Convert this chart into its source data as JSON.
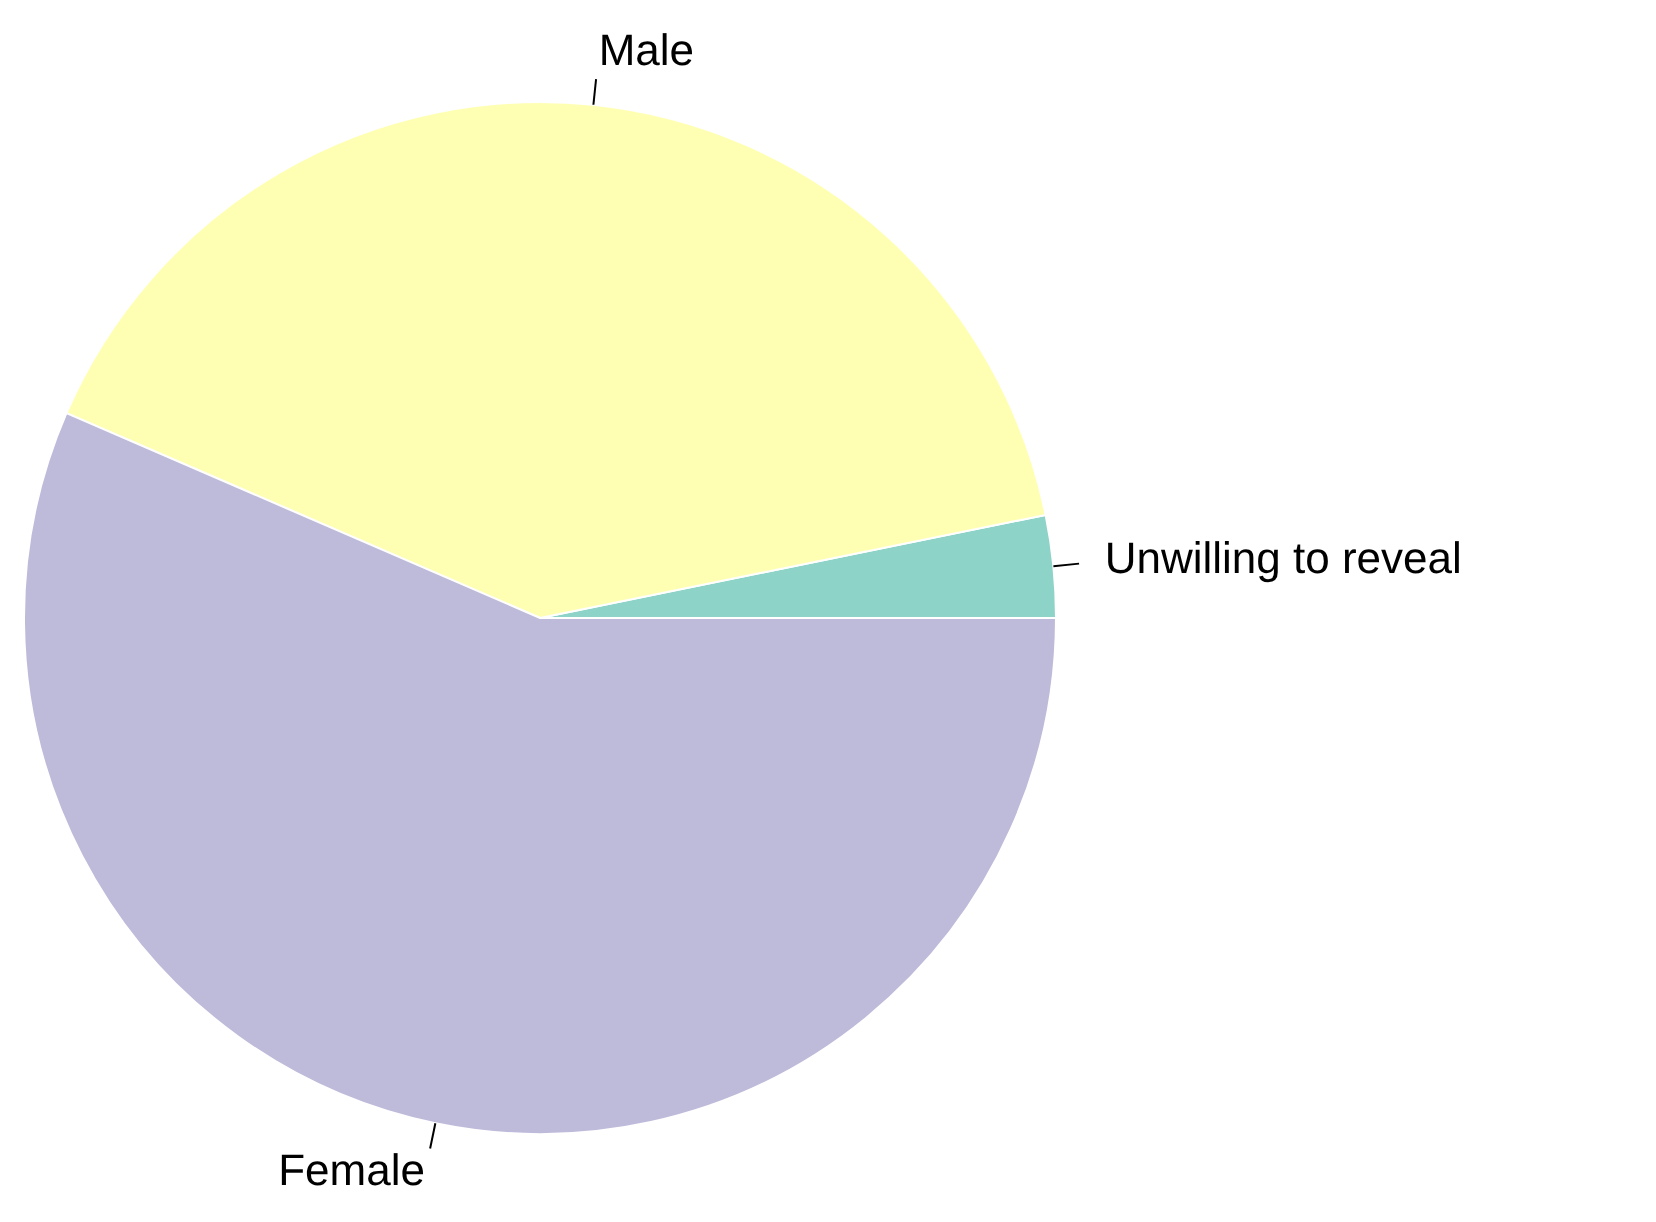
{
  "chart_data": {
    "type": "pie",
    "categories": [
      "Unwilling to reveal",
      "Male",
      "Female"
    ],
    "values": [
      3.2,
      40.3,
      56.5
    ],
    "colors": [
      "#8dd3c7",
      "#ffffb3",
      "#bebada"
    ]
  }
}
